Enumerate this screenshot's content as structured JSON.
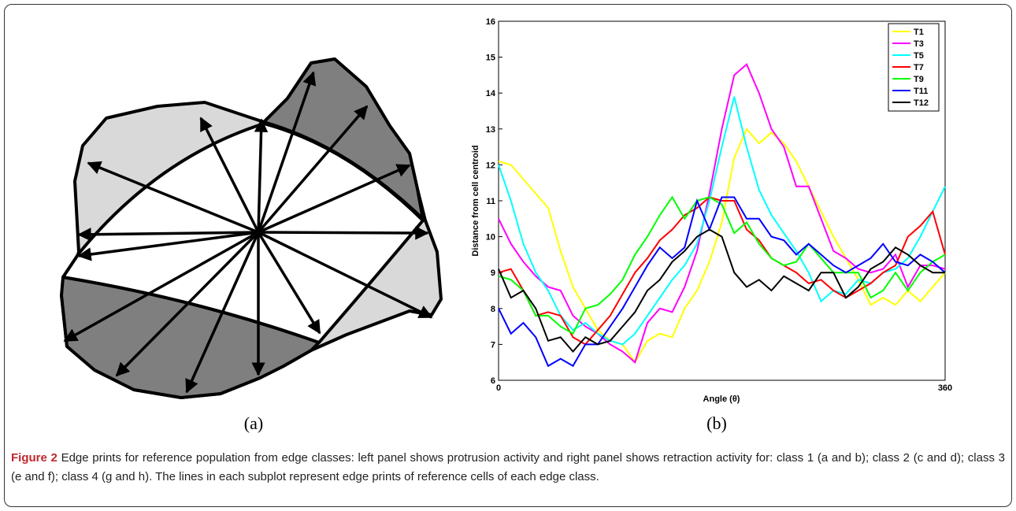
{
  "panel_labels": [
    "(a)",
    "(b)"
  ],
  "caption": {
    "label": "Figure 2",
    "text": "Edge prints for reference population from edge classes: left panel shows protrusion activity and right panel shows retraction activity for: class 1 (a and b); class 2 (c and d); class 3 (e and f); class 4 (g and h). The lines in each subplot represent edge prints of reference cells of each edge class."
  },
  "chart_data": {
    "type": "line",
    "xlabel": "Angle (θ)",
    "ylabel": "Distance from cell centroid",
    "xlim": [
      0,
      360
    ],
    "xticks": [
      0,
      360
    ],
    "ylim": [
      6,
      16
    ],
    "yticks": [
      6,
      7,
      8,
      9,
      10,
      11,
      12,
      13,
      14,
      15,
      16
    ],
    "grid": false,
    "legend": "upper right",
    "x": [
      0,
      10,
      20,
      30,
      40,
      50,
      60,
      70,
      80,
      90,
      100,
      110,
      120,
      130,
      140,
      150,
      160,
      170,
      180,
      190,
      200,
      210,
      220,
      230,
      240,
      250,
      260,
      270,
      280,
      290,
      300,
      310,
      320,
      330,
      340,
      350,
      360
    ],
    "series": [
      {
        "name": "T1",
        "color": "#ffff00",
        "values": [
          12.1,
          12.0,
          11.6,
          11.2,
          10.8,
          9.6,
          8.6,
          8.0,
          7.4,
          7.1,
          7.0,
          6.5,
          7.1,
          7.3,
          7.2,
          8.0,
          8.5,
          9.3,
          10.4,
          12.2,
          13.0,
          12.6,
          12.9,
          12.6,
          12.1,
          11.4,
          10.7,
          10.0,
          9.4,
          8.8,
          8.1,
          8.3,
          8.1,
          8.5,
          8.2,
          8.6,
          9.0
        ]
      },
      {
        "name": "T3",
        "color": "#ff00ff",
        "values": [
          10.5,
          9.8,
          9.3,
          8.9,
          8.6,
          8.5,
          7.8,
          7.5,
          7.3,
          7.0,
          6.8,
          6.5,
          7.6,
          8.0,
          7.9,
          8.6,
          9.6,
          11.2,
          13.0,
          14.5,
          14.8,
          14.0,
          13.0,
          12.5,
          11.4,
          11.4,
          10.5,
          9.6,
          9.4,
          9.1,
          9.0,
          9.1,
          9.5,
          8.6,
          9.2,
          9.2,
          9.1
        ]
      },
      {
        "name": "T5",
        "color": "#00ffff",
        "values": [
          12.0,
          11.0,
          9.8,
          9.0,
          8.5,
          7.8,
          7.4,
          7.6,
          7.3,
          7.1,
          7.0,
          7.3,
          7.8,
          8.3,
          8.8,
          9.2,
          9.8,
          11.0,
          12.5,
          13.9,
          12.5,
          11.3,
          10.6,
          10.1,
          9.6,
          9.0,
          8.2,
          8.5,
          8.4,
          8.8,
          8.7,
          9.0,
          9.1,
          9.4,
          10.0,
          10.7,
          11.4
        ]
      },
      {
        "name": "T7",
        "color": "#ff0000",
        "values": [
          9.0,
          9.1,
          8.5,
          7.8,
          7.9,
          7.8,
          7.2,
          7.0,
          7.4,
          7.8,
          8.4,
          9.0,
          9.4,
          9.9,
          10.2,
          10.6,
          10.8,
          11.1,
          11.0,
          11.0,
          10.2,
          9.9,
          9.4,
          9.2,
          9.0,
          8.7,
          8.8,
          8.5,
          8.3,
          8.5,
          8.7,
          9.0,
          9.2,
          10.0,
          10.3,
          10.7,
          9.5
        ]
      },
      {
        "name": "T9",
        "color": "#00ff00",
        "values": [
          8.9,
          8.8,
          8.5,
          7.8,
          7.8,
          7.5,
          7.3,
          8.0,
          8.1,
          8.4,
          8.8,
          9.5,
          10.0,
          10.6,
          11.1,
          10.5,
          11.0,
          11.1,
          10.9,
          10.1,
          10.4,
          9.8,
          9.4,
          9.2,
          9.3,
          9.8,
          9.4,
          9.0,
          9.0,
          9.0,
          8.3,
          8.5,
          9.0,
          8.5,
          9.0,
          9.3,
          9.5
        ]
      },
      {
        "name": "T11",
        "color": "#0000ff",
        "values": [
          8.0,
          7.3,
          7.6,
          7.2,
          6.4,
          6.6,
          6.4,
          7.0,
          7.0,
          7.5,
          8.0,
          8.6,
          9.2,
          9.7,
          9.4,
          9.7,
          11.0,
          10.2,
          11.1,
          11.1,
          10.5,
          10.5,
          10.0,
          9.9,
          9.5,
          9.8,
          9.5,
          9.2,
          9.0,
          9.2,
          9.4,
          9.8,
          9.3,
          9.2,
          9.5,
          9.3,
          9.0
        ]
      },
      {
        "name": "T12",
        "color": "#000000",
        "values": [
          9.1,
          8.3,
          8.5,
          8.0,
          7.1,
          7.2,
          6.8,
          7.2,
          7.0,
          7.1,
          7.5,
          7.9,
          8.5,
          8.8,
          9.3,
          9.6,
          10.0,
          10.2,
          10.0,
          9.0,
          8.6,
          8.8,
          8.5,
          8.9,
          8.7,
          8.5,
          9.0,
          9.0,
          8.3,
          8.6,
          9.1,
          9.3,
          9.7,
          9.5,
          9.2,
          9.0,
          9.0
        ]
      }
    ]
  }
}
